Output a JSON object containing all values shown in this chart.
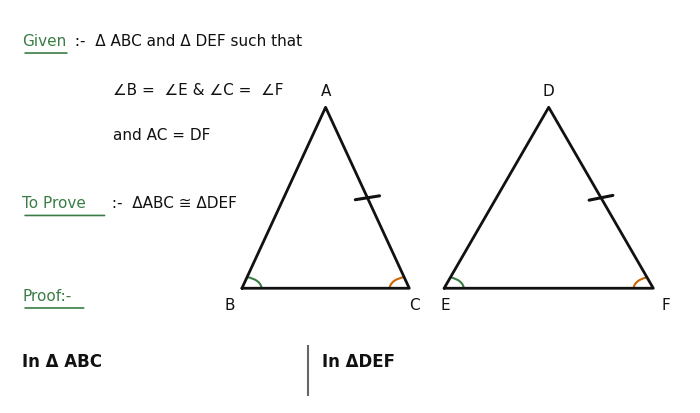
{
  "bg_color": "#ffffff",
  "green_color": "#3a7d44",
  "orange_color": "#cc6600",
  "dark_color": "#111111",
  "given_word": "Given",
  "given_rest": " :-  Δ ABC and Δ DEF such that",
  "condition1": "∠B =  ∠E & ∠C =  ∠F",
  "condition2": "and AC = DF",
  "toprove_word": "To Prove",
  "toprove_rest": " :-  ΔABC ≅ ΔDEF",
  "proof_word": "Proof:-",
  "in_abc": "In Δ ABC",
  "in_def": "In ΔDEF",
  "tri1": {
    "B": [
      0.345,
      0.3
    ],
    "C": [
      0.585,
      0.3
    ],
    "A": [
      0.465,
      0.74
    ]
  },
  "tri2": {
    "E": [
      0.635,
      0.3
    ],
    "F": [
      0.935,
      0.3
    ],
    "D": [
      0.785,
      0.74
    ]
  }
}
